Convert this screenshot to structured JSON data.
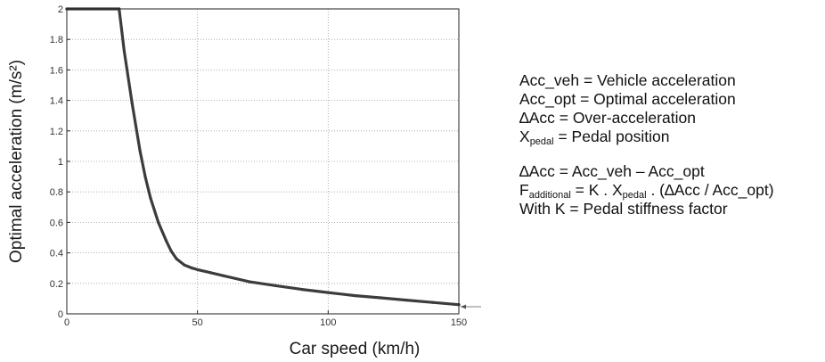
{
  "chart_data": {
    "type": "line",
    "xlabel": "Car speed (km/h)",
    "ylabel": "Optimal acceleration (m/s²)",
    "xlim": [
      0,
      150
    ],
    "ylim": [
      0,
      2
    ],
    "x_ticks": [
      "0",
      "50",
      "100",
      "150"
    ],
    "y_ticks": [
      "0",
      "0.2",
      "0.4",
      "0.6",
      "0.8",
      "1",
      "1.2",
      "1.4",
      "1.6",
      "1.8",
      "2"
    ],
    "grid": true,
    "grid_style": "dotted",
    "line_color": "#3c3c3c",
    "series": [
      {
        "x": [
          0,
          20,
          22,
          25,
          28,
          30,
          32,
          35,
          38,
          40,
          42,
          45,
          48,
          50,
          55,
          60,
          70,
          80,
          90,
          100,
          110,
          120,
          130,
          140,
          150
        ],
        "y": [
          2.0,
          2.0,
          1.72,
          1.38,
          1.07,
          0.9,
          0.76,
          0.6,
          0.48,
          0.41,
          0.36,
          0.32,
          0.3,
          0.29,
          0.27,
          0.25,
          0.21,
          0.185,
          0.16,
          0.14,
          0.12,
          0.105,
          0.09,
          0.075,
          0.06
        ]
      }
    ]
  },
  "notes": {
    "definitions": {
      "acc_veh": "Acc_veh = Vehicle acceleration",
      "acc_opt": "Acc_opt = Optimal acceleration",
      "delta_acc": "∆Acc = Over-acceleration",
      "x_pedal_main": "X",
      "x_pedal_sub": "pedal",
      "x_pedal_rest": " = Pedal position"
    },
    "formula": {
      "delta_line": "∆Acc = Acc_veh – Acc_opt",
      "f_main": "F",
      "f_sub": "additional",
      "f_mid": " = K . X",
      "f_x_sub": "pedal",
      "f_rest": " . (∆Acc / Acc_opt)",
      "k_line": "With K = Pedal stiffness factor"
    }
  }
}
